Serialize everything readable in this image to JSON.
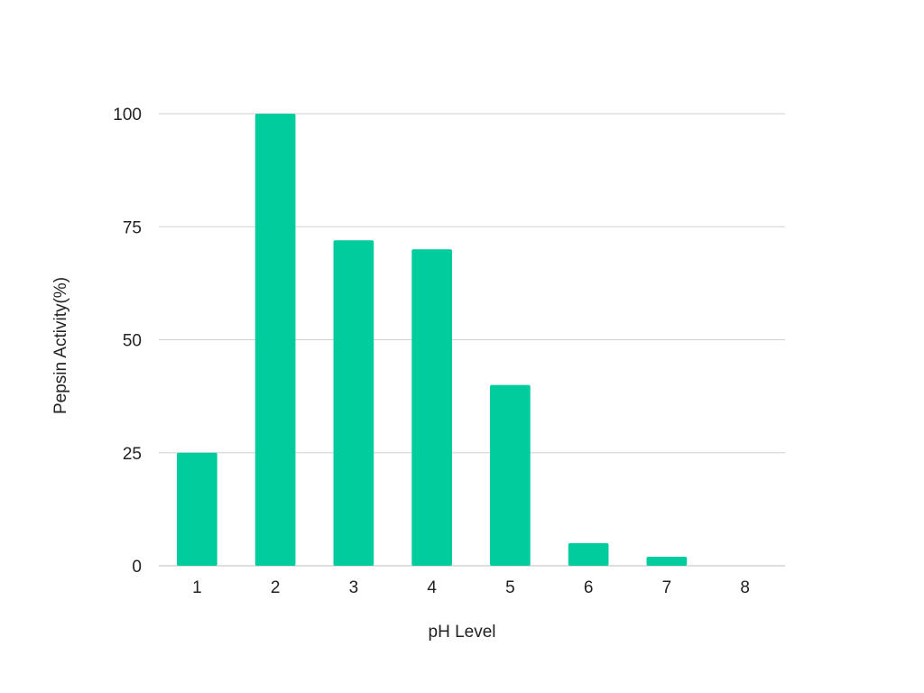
{
  "chart_data": {
    "type": "bar",
    "categories": [
      "1",
      "2",
      "3",
      "4",
      "5",
      "6",
      "7",
      "8"
    ],
    "values": [
      25,
      100,
      72,
      70,
      40,
      5,
      2,
      0
    ],
    "title": "",
    "xlabel": "pH Level",
    "ylabel": "Pepsin Activity(%)",
    "ylim": [
      0,
      100
    ],
    "yticks": [
      0,
      25,
      50,
      75,
      100
    ],
    "grid": true,
    "legend": "none",
    "bar_color": "#00cc9e"
  }
}
